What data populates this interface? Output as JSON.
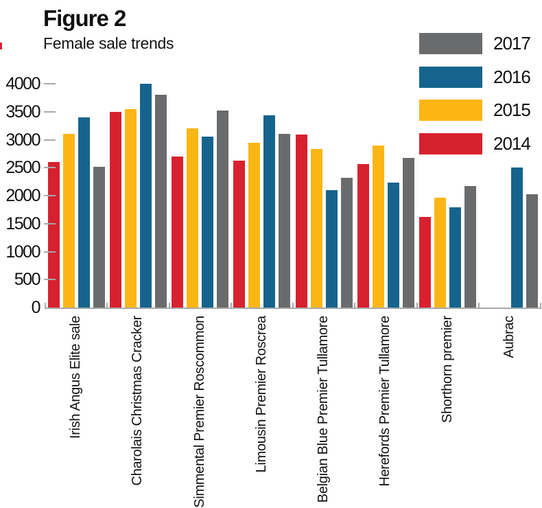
{
  "title": "Figure 2",
  "subtitle": "Female sale trends",
  "colors": {
    "red_2014": "#D7212E",
    "yellow_2015": "#FBB615",
    "blue_2016": "#16648D",
    "gray_2017": "#6A6B6D",
    "axis": "#A7A9AC",
    "text": "#111111",
    "edge_mark": "#D7212E"
  },
  "legend": [
    {
      "label": "2017",
      "color": "#6A6B6D"
    },
    {
      "label": "2016",
      "color": "#16648D"
    },
    {
      "label": "2015",
      "color": "#FBB615"
    },
    {
      "label": "2014",
      "color": "#D7212E"
    }
  ],
  "chart_data": {
    "type": "bar",
    "title": "Figure 2",
    "subtitle": "Female sale trends",
    "categories": [
      "Irish Angus Elite sale",
      "Charolais Christmas Cracker",
      "Simmental Premier Roscommon",
      "Limousin Premier Roscrea",
      "Belgian Blue Premier Tullamore",
      "Herefords Premier Tullamore",
      "Shorthorn premier",
      "Aubrac"
    ],
    "series": [
      {
        "name": "2014",
        "color": "#D7212E",
        "values": [
          2600,
          3500,
          2700,
          2620,
          3090,
          2560,
          1620,
          null
        ]
      },
      {
        "name": "2015",
        "color": "#FBB615",
        "values": [
          3100,
          3550,
          3200,
          2950,
          2840,
          2890,
          1960,
          null
        ]
      },
      {
        "name": "2016",
        "color": "#16648D",
        "values": [
          3400,
          4000,
          3050,
          3440,
          2100,
          2230,
          1790,
          2500
        ]
      },
      {
        "name": "2017",
        "color": "#6A6B6D",
        "values": [
          2520,
          3800,
          3520,
          3100,
          2320,
          2670,
          2170,
          2020
        ]
      }
    ],
    "xlabel": "",
    "ylabel": "",
    "ylim": [
      0,
      4000
    ],
    "yticks": [
      0,
      500,
      1000,
      1500,
      2000,
      2500,
      3000,
      3500,
      4000
    ],
    "grid": false,
    "legend_position": "top-right",
    "legend_order": [
      "2017",
      "2016",
      "2015",
      "2014"
    ],
    "bar_orientation": "vertical",
    "x_tick_label_rotation_deg": 90
  }
}
